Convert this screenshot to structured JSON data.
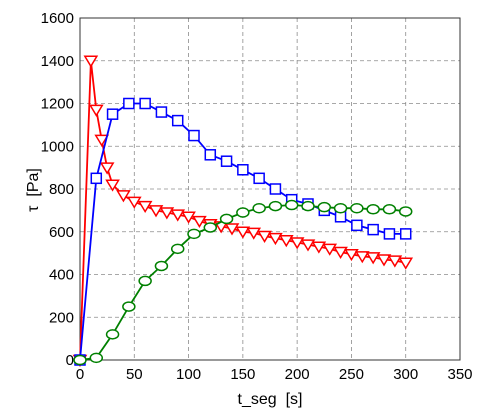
{
  "chart_data": {
    "type": "line",
    "xlabel": "t_seg  [s]",
    "ylabel": "τ  [Pa]",
    "xlim": [
      0,
      350
    ],
    "ylim": [
      0,
      1600
    ],
    "xticks": [
      0,
      50,
      100,
      150,
      200,
      250,
      300,
      350
    ],
    "yticks": [
      0,
      200,
      400,
      600,
      800,
      1000,
      1200,
      1400,
      1600
    ],
    "grid": true,
    "series": [
      {
        "color": "#ff0000",
        "marker": "triangle-down",
        "x": [
          0,
          10,
          15,
          20,
          25,
          30,
          40,
          50,
          60,
          70,
          80,
          90,
          100,
          110,
          120,
          130,
          140,
          150,
          160,
          170,
          180,
          190,
          200,
          210,
          220,
          230,
          240,
          250,
          260,
          270,
          280,
          290,
          300
        ],
        "y": [
          0,
          1400,
          1170,
          1030,
          900,
          820,
          770,
          740,
          720,
          700,
          690,
          680,
          670,
          650,
          635,
          625,
          615,
          600,
          595,
          580,
          570,
          560,
          550,
          540,
          530,
          520,
          505,
          495,
          485,
          480,
          470,
          465,
          455
        ]
      },
      {
        "color": "#0000ff",
        "marker": "square",
        "x": [
          0,
          15,
          30,
          45,
          60,
          75,
          90,
          105,
          120,
          135,
          150,
          165,
          180,
          195,
          210,
          225,
          240,
          255,
          270,
          285,
          300
        ],
        "y": [
          0,
          850,
          1150,
          1200,
          1200,
          1160,
          1120,
          1050,
          960,
          930,
          890,
          850,
          800,
          750,
          730,
          700,
          670,
          630,
          610,
          590,
          590
        ]
      },
      {
        "color": "#008000",
        "marker": "circle",
        "x": [
          0,
          15,
          30,
          45,
          60,
          75,
          90,
          105,
          120,
          135,
          150,
          165,
          180,
          195,
          210,
          225,
          240,
          255,
          270,
          285,
          300
        ],
        "y": [
          0,
          10,
          120,
          250,
          370,
          440,
          520,
          590,
          620,
          660,
          690,
          710,
          720,
          725,
          720,
          715,
          710,
          710,
          705,
          705,
          695
        ]
      }
    ]
  }
}
